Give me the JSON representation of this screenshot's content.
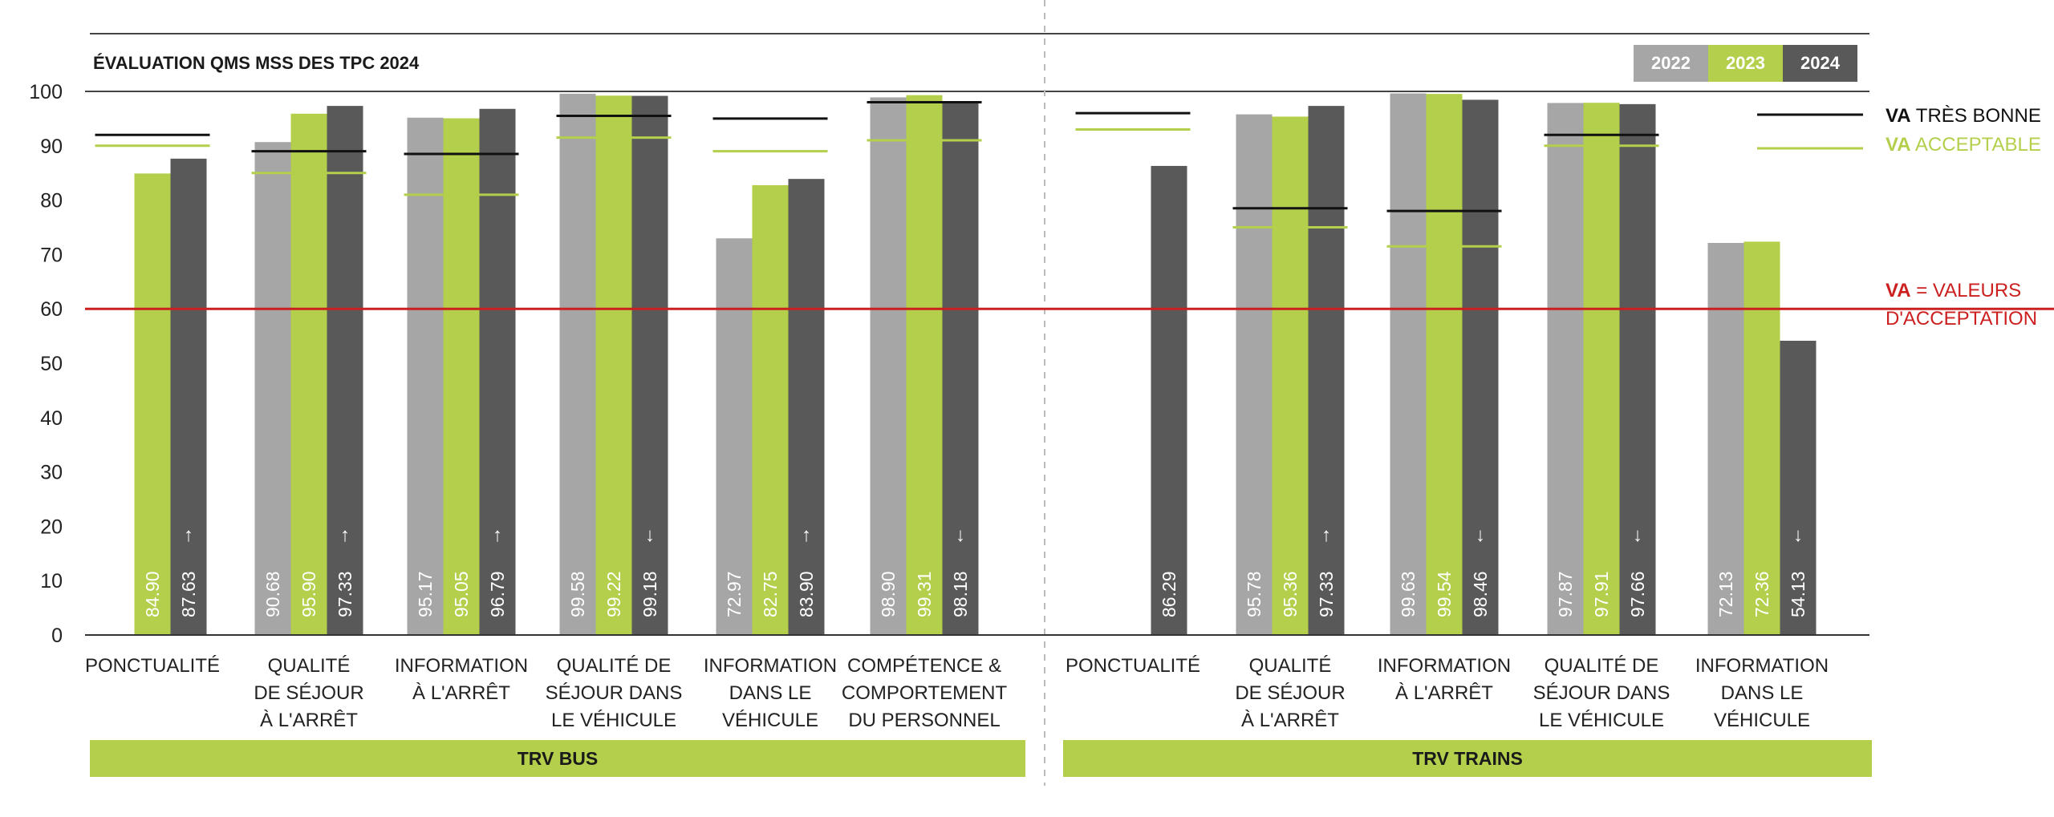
{
  "title": "ÉVALUATION QMS MSS DES TPC 2024",
  "colors": {
    "y2022": "#a6a6a6",
    "y2023": "#b3cf4b",
    "y2024": "#595959",
    "va_tres_bonne": "#111111",
    "va_acceptable": "#b3cf4b",
    "acceptance": "#cc1f1f",
    "group_band": "#b3cf4b"
  },
  "legend_years": [
    "2022",
    "2023",
    "2024"
  ],
  "legend": {
    "tres_bonne_prefix": "VA",
    "tres_bonne_text": " TRÈS BONNE",
    "acceptable_prefix": "VA",
    "acceptable_text": " ACCEPTABLE",
    "acceptance_prefix": "VA",
    "acceptance_line1": " = VALEURS",
    "acceptance_line2": "D'ACCEPTATION"
  },
  "chart_data": {
    "type": "bar",
    "title": "ÉVALUATION QMS MSS DES TPC 2024",
    "ylim": [
      0,
      100
    ],
    "yticks": [
      0,
      10,
      20,
      30,
      40,
      50,
      60,
      70,
      80,
      90,
      100
    ],
    "series_names": [
      "2022",
      "2023",
      "2024"
    ],
    "acceptance_value": 60,
    "groups": [
      {
        "name": "TRV BUS",
        "categories": [
          {
            "label": [
              "PONCTUALITÉ"
            ],
            "values": [
              null,
              84.9,
              87.63
            ],
            "display": [
              "",
              "84.90",
              "87.63"
            ],
            "trend": "up",
            "va_tres_bonne": 92,
            "va_acceptable": 90
          },
          {
            "label": [
              "QUALITÉ",
              "DE SÉJOUR",
              "À L'ARRÊT"
            ],
            "values": [
              90.68,
              95.9,
              97.33
            ],
            "display": [
              "90.68",
              "95.90",
              "97.33"
            ],
            "trend": "up",
            "va_tres_bonne": 89,
            "va_acceptable": 85
          },
          {
            "label": [
              "INFORMATION",
              "À L'ARRÊT"
            ],
            "values": [
              95.17,
              95.05,
              96.79
            ],
            "display": [
              "95.17",
              "95.05",
              "96.79"
            ],
            "trend": "up",
            "va_tres_bonne": 88.5,
            "va_acceptable": 81
          },
          {
            "label": [
              "QUALITÉ DE",
              "SÉJOUR DANS",
              "LE VÉHICULE"
            ],
            "values": [
              99.58,
              99.22,
              99.18
            ],
            "display": [
              "99.58",
              "99.22",
              "99.18"
            ],
            "trend": "down",
            "va_tres_bonne": 95.5,
            "va_acceptable": 91.5
          },
          {
            "label": [
              "INFORMATION",
              "DANS LE",
              "VÉHICULE"
            ],
            "values": [
              72.97,
              82.75,
              83.9
            ],
            "display": [
              "72.97",
              "82.75",
              "83.90"
            ],
            "trend": "up",
            "va_tres_bonne": 95,
            "va_acceptable": 89
          },
          {
            "label": [
              "COMPÉTENCE &",
              "COMPORTEMENT",
              "DU PERSONNEL"
            ],
            "values": [
              98.9,
              99.31,
              98.18
            ],
            "display": [
              "98.90",
              "99.31",
              "98.18"
            ],
            "trend": "down",
            "va_tres_bonne": 98,
            "va_acceptable": 91
          }
        ]
      },
      {
        "name": "TRV TRAINS",
        "categories": [
          {
            "label": [
              "PONCTUALITÉ"
            ],
            "values": [
              null,
              null,
              86.29
            ],
            "display": [
              "",
              "",
              "86.29"
            ],
            "trend": "",
            "va_tres_bonne": 96,
            "va_acceptable": 93
          },
          {
            "label": [
              "QUALITÉ",
              "DE SÉJOUR",
              "À L'ARRÊT"
            ],
            "values": [
              95.78,
              95.36,
              97.33
            ],
            "display": [
              "95.78",
              "95.36",
              "97.33"
            ],
            "trend": "up",
            "va_tres_bonne": 78.5,
            "va_acceptable": 75
          },
          {
            "label": [
              "INFORMATION",
              "À L'ARRÊT"
            ],
            "values": [
              99.63,
              99.54,
              98.46
            ],
            "display": [
              "99.63",
              "99.54",
              "98.46"
            ],
            "trend": "down",
            "va_tres_bonne": 78,
            "va_acceptable": 71.5
          },
          {
            "label": [
              "QUALITÉ DE",
              "SÉJOUR DANS",
              "LE VÉHICULE"
            ],
            "values": [
              97.87,
              97.91,
              97.66
            ],
            "display": [
              "97.87",
              "97.91",
              "97.66"
            ],
            "trend": "down",
            "va_tres_bonne": 92,
            "va_acceptable": 90
          },
          {
            "label": [
              "INFORMATION",
              "DANS LE",
              "VÉHICULE"
            ],
            "values": [
              72.13,
              72.36,
              54.13
            ],
            "display": [
              "72.13",
              "72.36",
              "54.13"
            ],
            "trend": "down",
            "va_tres_bonne": null,
            "va_acceptable": null
          }
        ]
      }
    ]
  }
}
